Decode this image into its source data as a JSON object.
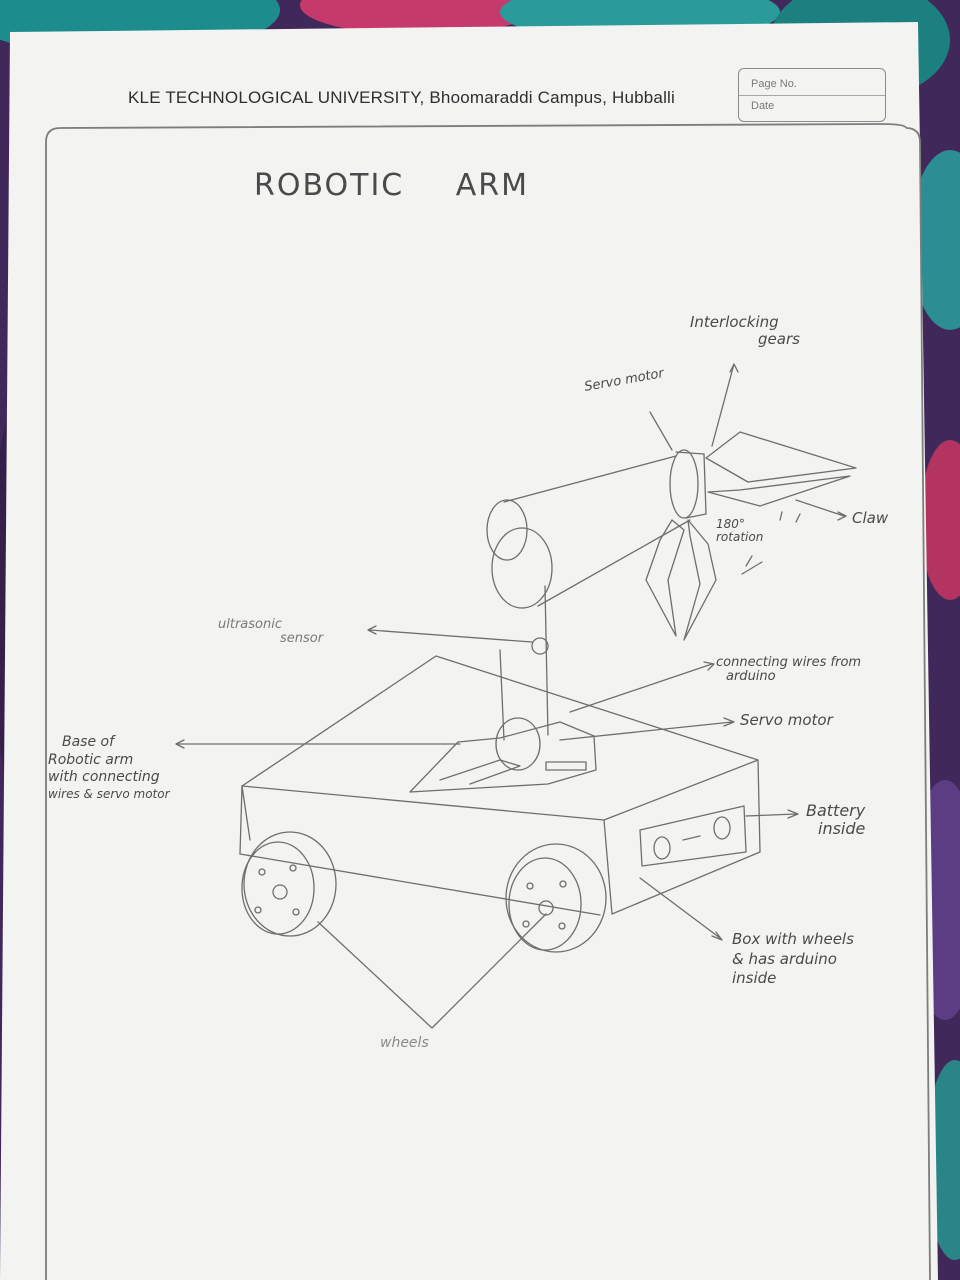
{
  "header": {
    "university": "KLE TECHNOLOGICAL UNIVERSITY, Bhoomaraddi Campus, Hubballi",
    "page_no_label": "Page No.",
    "date_label": "Date"
  },
  "drawing": {
    "title": "ROBOTIC ARM",
    "labels": {
      "interlocking_gears": [
        "Interlocking",
        "gears"
      ],
      "servo_motor_top": "Servo motor",
      "claw": "Claw",
      "rotation": [
        "180°",
        "rotation"
      ],
      "ultrasonic_sensor": [
        "ultrasonic",
        "sensor"
      ],
      "connecting_wires": [
        "connecting wires from",
        "arduino"
      ],
      "servo_motor_base": "Servo motor",
      "base_of_arm": [
        "Base of",
        "Robotic arm",
        "with connecting",
        "wires & servo motor"
      ],
      "battery": [
        "Battery",
        "inside"
      ],
      "box": [
        "Box with wheels",
        "& has arduino",
        "inside"
      ],
      "wheels": "wheels"
    }
  }
}
